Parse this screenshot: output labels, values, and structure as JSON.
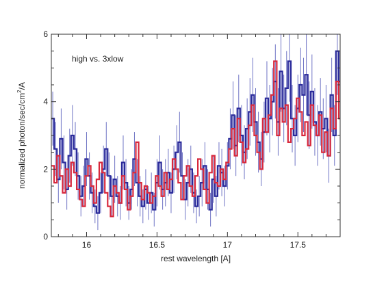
{
  "chart_data": {
    "type": "line",
    "annotation": "high vs. 3xlow",
    "xlabel": "rest wavelength [A]",
    "ylabel": {
      "base": "normalized photon/sec/cm",
      "sup": "2",
      "tail": "/A"
    },
    "xlim": [
      15.75,
      17.8
    ],
    "ylim": [
      0,
      6
    ],
    "x_ticks": [
      16,
      16.5,
      17,
      17.5
    ],
    "x_tick_labels": [
      "16",
      "16.5",
      "17",
      "17.5"
    ],
    "y_ticks": [
      0,
      2,
      4,
      6
    ],
    "y_tick_labels": [
      "0",
      "2",
      "4",
      "6"
    ],
    "grid": false,
    "series": [
      {
        "color": "#2a2a9a",
        "errorbar_color": "#6e73c4",
        "x": [
          15.76,
          15.78,
          15.8,
          15.82,
          15.84,
          15.86,
          15.88,
          15.9,
          15.92,
          15.94,
          15.96,
          15.98,
          16.0,
          16.02,
          16.04,
          16.06,
          16.08,
          16.1,
          16.12,
          16.14,
          16.16,
          16.18,
          16.2,
          16.22,
          16.24,
          16.26,
          16.28,
          16.3,
          16.32,
          16.34,
          16.36,
          16.38,
          16.4,
          16.42,
          16.44,
          16.46,
          16.48,
          16.5,
          16.52,
          16.54,
          16.56,
          16.58,
          16.6,
          16.62,
          16.64,
          16.66,
          16.68,
          16.7,
          16.72,
          16.74,
          16.76,
          16.78,
          16.8,
          16.82,
          16.84,
          16.86,
          16.88,
          16.9,
          16.92,
          16.94,
          16.96,
          16.98,
          17.0,
          17.02,
          17.04,
          17.06,
          17.08,
          17.1,
          17.12,
          17.14,
          17.16,
          17.18,
          17.2,
          17.22,
          17.24,
          17.26,
          17.28,
          17.3,
          17.32,
          17.34,
          17.36,
          17.38,
          17.4,
          17.42,
          17.44,
          17.46,
          17.48,
          17.5,
          17.52,
          17.54,
          17.56,
          17.58,
          17.6,
          17.62,
          17.64,
          17.66,
          17.68,
          17.7,
          17.72,
          17.74,
          17.76,
          17.78,
          17.8
        ],
        "y": [
          3.5,
          2.6,
          1.7,
          2.9,
          2.2,
          1.4,
          2.4,
          3.0,
          2.6,
          1.8,
          1.2,
          1.5,
          2.3,
          1.8,
          1.3,
          0.9,
          0.7,
          1.3,
          2.0,
          2.6,
          1.8,
          1.2,
          1.7,
          1.2,
          1.0,
          2.2,
          1.6,
          1.0,
          1.4,
          2.3,
          1.6,
          1.2,
          0.9,
          1.4,
          1.0,
          1.3,
          0.8,
          1.6,
          2.2,
          1.4,
          1.6,
          1.9,
          1.3,
          2.0,
          2.5,
          2.8,
          1.8,
          1.1,
          1.6,
          2.0,
          1.3,
          0.9,
          1.2,
          1.6,
          2.1,
          1.4,
          0.8,
          1.7,
          1.2,
          2.1,
          1.9,
          1.5,
          2.1,
          2.9,
          3.6,
          2.7,
          3.8,
          3.0,
          2.5,
          3.2,
          3.7,
          4.2,
          3.4,
          2.8,
          2.3,
          3.1,
          4.1,
          3.5,
          4.0,
          4.6,
          3.4,
          4.9,
          3.8,
          4.4,
          5.2,
          3.5,
          3.0,
          3.8,
          4.5,
          4.2,
          4.8,
          3.6,
          4.3,
          3.4,
          3.0,
          3.7,
          3.2,
          3.5,
          2.4,
          4.2,
          3.0,
          5.5,
          4.6
        ],
        "err": [
          0.8,
          0.8,
          0.7,
          0.9,
          0.8,
          0.6,
          0.8,
          0.9,
          0.8,
          0.7,
          0.6,
          0.6,
          0.8,
          0.7,
          0.6,
          0.5,
          0.5,
          0.6,
          0.7,
          0.8,
          0.7,
          0.6,
          0.7,
          0.6,
          0.5,
          0.8,
          0.7,
          0.5,
          0.6,
          0.8,
          0.7,
          0.6,
          0.5,
          0.6,
          0.5,
          0.6,
          0.5,
          0.7,
          0.8,
          0.6,
          0.7,
          0.7,
          0.6,
          0.7,
          0.8,
          0.9,
          0.7,
          0.6,
          0.7,
          0.7,
          0.6,
          0.5,
          0.6,
          0.7,
          0.7,
          0.6,
          0.5,
          0.7,
          0.6,
          0.7,
          0.7,
          0.6,
          0.7,
          0.9,
          1.0,
          0.9,
          1.0,
          0.9,
          0.8,
          0.9,
          1.0,
          1.1,
          1.0,
          0.9,
          0.8,
          0.9,
          1.1,
          1.0,
          1.0,
          1.1,
          1.0,
          1.2,
          1.0,
          1.1,
          1.2,
          1.0,
          0.9,
          1.0,
          1.1,
          1.1,
          1.2,
          1.0,
          1.1,
          1.0,
          0.9,
          1.0,
          0.9,
          1.0,
          0.8,
          1.1,
          0.9,
          1.3,
          1.2
        ]
      },
      {
        "color": "#d8283c",
        "x": [
          15.76,
          15.78,
          15.8,
          15.82,
          15.84,
          15.86,
          15.88,
          15.9,
          15.92,
          15.94,
          15.96,
          15.98,
          16.0,
          16.02,
          16.04,
          16.06,
          16.08,
          16.1,
          16.12,
          16.14,
          16.16,
          16.18,
          16.2,
          16.22,
          16.24,
          16.26,
          16.28,
          16.3,
          16.32,
          16.34,
          16.36,
          16.38,
          16.4,
          16.42,
          16.44,
          16.46,
          16.48,
          16.5,
          16.52,
          16.54,
          16.56,
          16.58,
          16.6,
          16.62,
          16.64,
          16.66,
          16.68,
          16.7,
          16.72,
          16.74,
          16.76,
          16.78,
          16.8,
          16.82,
          16.84,
          16.86,
          16.88,
          16.9,
          16.92,
          16.94,
          16.96,
          16.98,
          17.0,
          17.02,
          17.04,
          17.06,
          17.08,
          17.1,
          17.12,
          17.14,
          17.16,
          17.18,
          17.2,
          17.22,
          17.24,
          17.26,
          17.28,
          17.3,
          17.32,
          17.34,
          17.36,
          17.38,
          17.4,
          17.42,
          17.44,
          17.46,
          17.48,
          17.5,
          17.52,
          17.54,
          17.56,
          17.58,
          17.6,
          17.62,
          17.64,
          17.66,
          17.68,
          17.7,
          17.72,
          17.74,
          17.76,
          17.78,
          17.8
        ],
        "y": [
          2.1,
          1.6,
          2.4,
          1.8,
          1.3,
          2.0,
          1.5,
          2.2,
          1.9,
          1.4,
          1.1,
          0.9,
          1.8,
          2.1,
          1.5,
          1.0,
          1.7,
          2.2,
          1.9,
          1.3,
          0.9,
          0.6,
          1.5,
          1.3,
          1.0,
          1.8,
          1.4,
          0.8,
          1.2,
          1.9,
          2.8,
          1.6,
          1.1,
          1.5,
          1.3,
          1.0,
          1.2,
          1.8,
          1.5,
          1.2,
          1.9,
          1.4,
          1.7,
          2.3,
          2.0,
          1.6,
          1.1,
          1.8,
          2.1,
          1.5,
          1.2,
          1.8,
          2.3,
          2.0,
          1.4,
          1.0,
          1.9,
          2.4,
          1.6,
          1.5,
          2.0,
          1.7,
          2.2,
          2.6,
          3.2,
          2.4,
          3.5,
          2.8,
          2.2,
          2.6,
          3.3,
          3.9,
          3.0,
          2.5,
          2.0,
          3.5,
          3.1,
          3.6,
          4.2,
          5.2,
          3.0,
          3.8,
          3.4,
          3.9,
          2.8,
          3.2,
          3.5,
          4.1,
          3.7,
          3.0,
          3.4,
          2.7,
          3.9,
          3.3,
          3.0,
          3.6,
          2.5,
          3.1,
          2.4,
          3.8,
          3.2,
          4.6,
          3.5
        ]
      }
    ]
  }
}
